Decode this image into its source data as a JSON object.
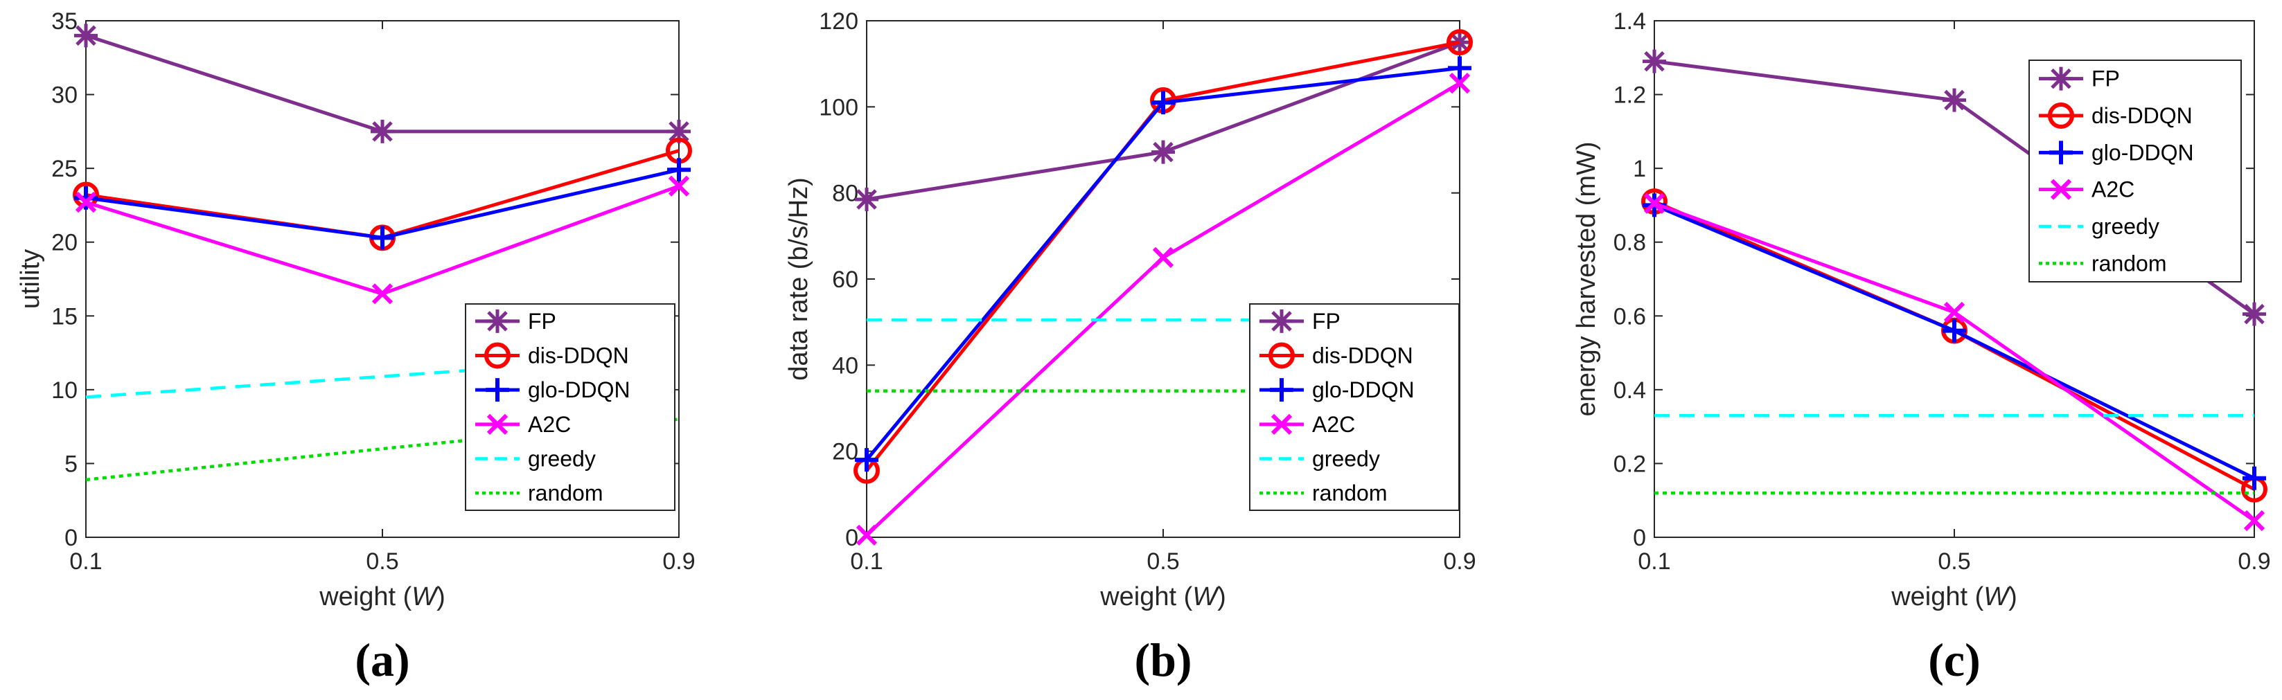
{
  "figure": {
    "colors": {
      "FP": "#7E2F8E",
      "dis-DDQN": "#FF0000",
      "glo-DDQN": "#0000FF",
      "A2C": "#FF00FF",
      "greedy": "#00FFFF",
      "random": "#00DD00"
    }
  },
  "chart_data": [
    {
      "type": "line",
      "panel_label": "(a)",
      "xlabel": "weight (W)",
      "xlabel_parts": {
        "main": "weight (",
        "var": "W",
        "close": ")"
      },
      "ylabel": "utility",
      "x": [
        0.1,
        0.5,
        0.9
      ],
      "xticks": [
        "0.1",
        "0.5",
        "0.9"
      ],
      "ylim": [
        0,
        35
      ],
      "yticks": [
        "0",
        "5",
        "10",
        "15",
        "20",
        "25",
        "30",
        "35"
      ],
      "legend_position": "lower-right",
      "series": [
        {
          "name": "FP",
          "values": [
            34,
            27.5,
            27.5
          ],
          "marker": "star",
          "style": "solid"
        },
        {
          "name": "dis-DDQN",
          "values": [
            23.2,
            20.3,
            26.2
          ],
          "marker": "circle",
          "style": "solid"
        },
        {
          "name": "glo-DDQN",
          "values": [
            23,
            20.3,
            24.9
          ],
          "marker": "plus",
          "style": "solid"
        },
        {
          "name": "A2C",
          "values": [
            22.7,
            16.5,
            23.8
          ],
          "marker": "x",
          "style": "solid"
        },
        {
          "name": "greedy",
          "values": [
            9.5,
            10.9,
            12.3
          ],
          "marker": "none",
          "style": "dashed"
        },
        {
          "name": "random",
          "values": [
            3.9,
            6,
            8
          ],
          "marker": "none",
          "style": "dotted"
        }
      ]
    },
    {
      "type": "line",
      "panel_label": "(b)",
      "xlabel": "weight (W)",
      "xlabel_parts": {
        "main": "weight (",
        "var": "W",
        "close": ")"
      },
      "ylabel": "data rate (b/s/Hz)",
      "x": [
        0.1,
        0.5,
        0.9
      ],
      "xticks": [
        "0.1",
        "0.5",
        "0.9"
      ],
      "ylim": [
        0,
        120
      ],
      "yticks": [
        "0",
        "20",
        "40",
        "60",
        "80",
        "100",
        "120"
      ],
      "legend_position": "lower-right",
      "series": [
        {
          "name": "FP",
          "values": [
            78.5,
            89.5,
            115
          ],
          "marker": "star",
          "style": "solid"
        },
        {
          "name": "dis-DDQN",
          "values": [
            15.5,
            101.5,
            115
          ],
          "marker": "circle",
          "style": "solid"
        },
        {
          "name": "glo-DDQN",
          "values": [
            18,
            101,
            109
          ],
          "marker": "plus",
          "style": "solid"
        },
        {
          "name": "A2C",
          "values": [
            0.5,
            65,
            105.5
          ],
          "marker": "x",
          "style": "solid"
        },
        {
          "name": "greedy",
          "values": [
            50.5,
            50.5,
            50.5
          ],
          "marker": "none",
          "style": "dashed"
        },
        {
          "name": "random",
          "values": [
            34,
            34,
            34
          ],
          "marker": "none",
          "style": "dotted"
        }
      ]
    },
    {
      "type": "line",
      "panel_label": "(c)",
      "xlabel": "weight (W)",
      "xlabel_parts": {
        "main": "weight (",
        "var": "W",
        "close": ")"
      },
      "ylabel": "energy harvested (mW)",
      "x": [
        0.1,
        0.5,
        0.9
      ],
      "xticks": [
        "0.1",
        "0.5",
        "0.9"
      ],
      "ylim": [
        0,
        1.4
      ],
      "yticks": [
        "0",
        "0.2",
        "0.4",
        "0.6",
        "0.8",
        "1",
        "1.2",
        "1.4"
      ],
      "legend_position": "upper-right",
      "series": [
        {
          "name": "FP",
          "values": [
            1.29,
            1.185,
            0.605
          ],
          "marker": "star",
          "style": "solid"
        },
        {
          "name": "dis-DDQN",
          "values": [
            0.91,
            0.56,
            0.13
          ],
          "marker": "circle",
          "style": "solid"
        },
        {
          "name": "glo-DDQN",
          "values": [
            0.9,
            0.56,
            0.16
          ],
          "marker": "plus",
          "style": "solid"
        },
        {
          "name": "A2C",
          "values": [
            0.905,
            0.61,
            0.045
          ],
          "marker": "x",
          "style": "solid"
        },
        {
          "name": "greedy",
          "values": [
            0.33,
            0.33,
            0.33
          ],
          "marker": "none",
          "style": "dashed"
        },
        {
          "name": "random",
          "values": [
            0.12,
            0.12,
            0.12
          ],
          "marker": "none",
          "style": "dotted"
        }
      ]
    }
  ]
}
